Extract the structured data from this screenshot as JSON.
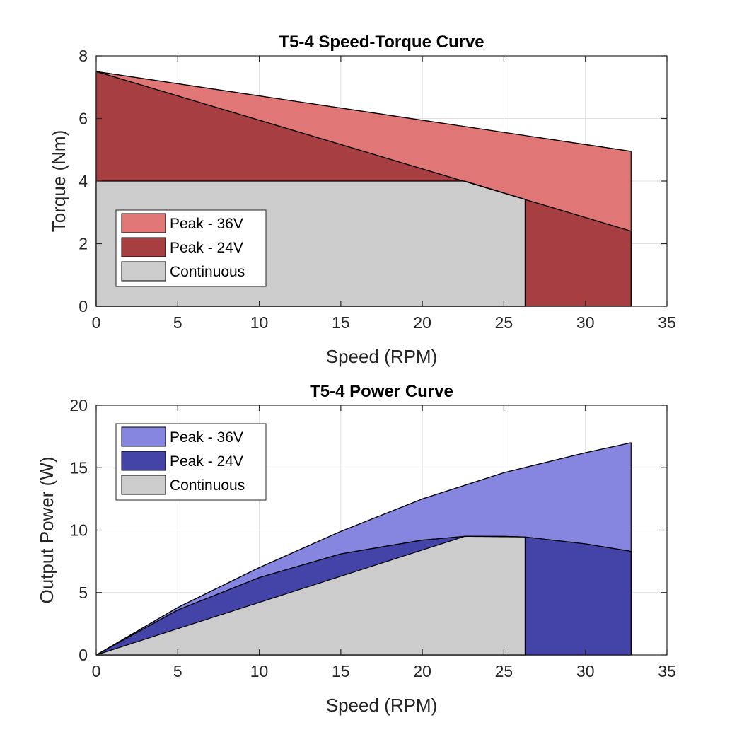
{
  "chart_data": [
    {
      "type": "area",
      "title": "T5-4  Speed-Torque Curve",
      "xlabel": "Speed (RPM)",
      "ylabel": "Torque (Nm)",
      "xlim": [
        0,
        35
      ],
      "ylim": [
        0,
        8
      ],
      "xticks": [
        0,
        5,
        10,
        15,
        20,
        25,
        30,
        35
      ],
      "yticks": [
        0,
        2,
        4,
        6,
        8
      ],
      "grid": true,
      "legend_position": "lower-left",
      "series": [
        {
          "name": "Peak - 36V",
          "color": "#e07676",
          "x": [
            0,
            32.8
          ],
          "y": [
            7.5,
            4.95
          ]
        },
        {
          "name": "Peak - 24V",
          "color": "#a63e42",
          "x": [
            0,
            32.8
          ],
          "y": [
            7.5,
            2.4
          ]
        },
        {
          "name": "Continuous",
          "color": "#cccccc",
          "x": [
            0,
            22.6,
            26.3,
            26.3
          ],
          "y": [
            4.0,
            4.0,
            3.42,
            0
          ]
        }
      ]
    },
    {
      "type": "area",
      "title": "T5-4  Power Curve",
      "xlabel": "Speed (RPM)",
      "ylabel": "Output Power (W)",
      "xlim": [
        0,
        35
      ],
      "ylim": [
        0,
        20
      ],
      "xticks": [
        0,
        5,
        10,
        15,
        20,
        25,
        30,
        35
      ],
      "yticks": [
        0,
        5,
        10,
        15,
        20
      ],
      "grid": true,
      "legend_position": "upper-left",
      "series": [
        {
          "name": "Peak - 36V",
          "color": "#8686e0",
          "x": [
            0,
            5,
            10,
            15,
            20,
            25,
            30,
            32.8
          ],
          "y": [
            0,
            3.8,
            7.0,
            9.9,
            12.5,
            14.6,
            16.2,
            17.0
          ]
        },
        {
          "name": "Peak - 24V",
          "color": "#4343a8",
          "x": [
            0,
            5,
            10,
            15,
            20,
            22.6,
            25,
            26.3,
            30,
            32.8
          ],
          "y": [
            0,
            3.6,
            6.2,
            8.1,
            9.2,
            9.5,
            9.5,
            9.45,
            8.9,
            8.3
          ]
        },
        {
          "name": "Continuous",
          "color": "#cccccc",
          "x": [
            0,
            22.6,
            26.3,
            26.3
          ],
          "y": [
            0,
            9.5,
            9.45,
            0
          ]
        }
      ]
    }
  ]
}
